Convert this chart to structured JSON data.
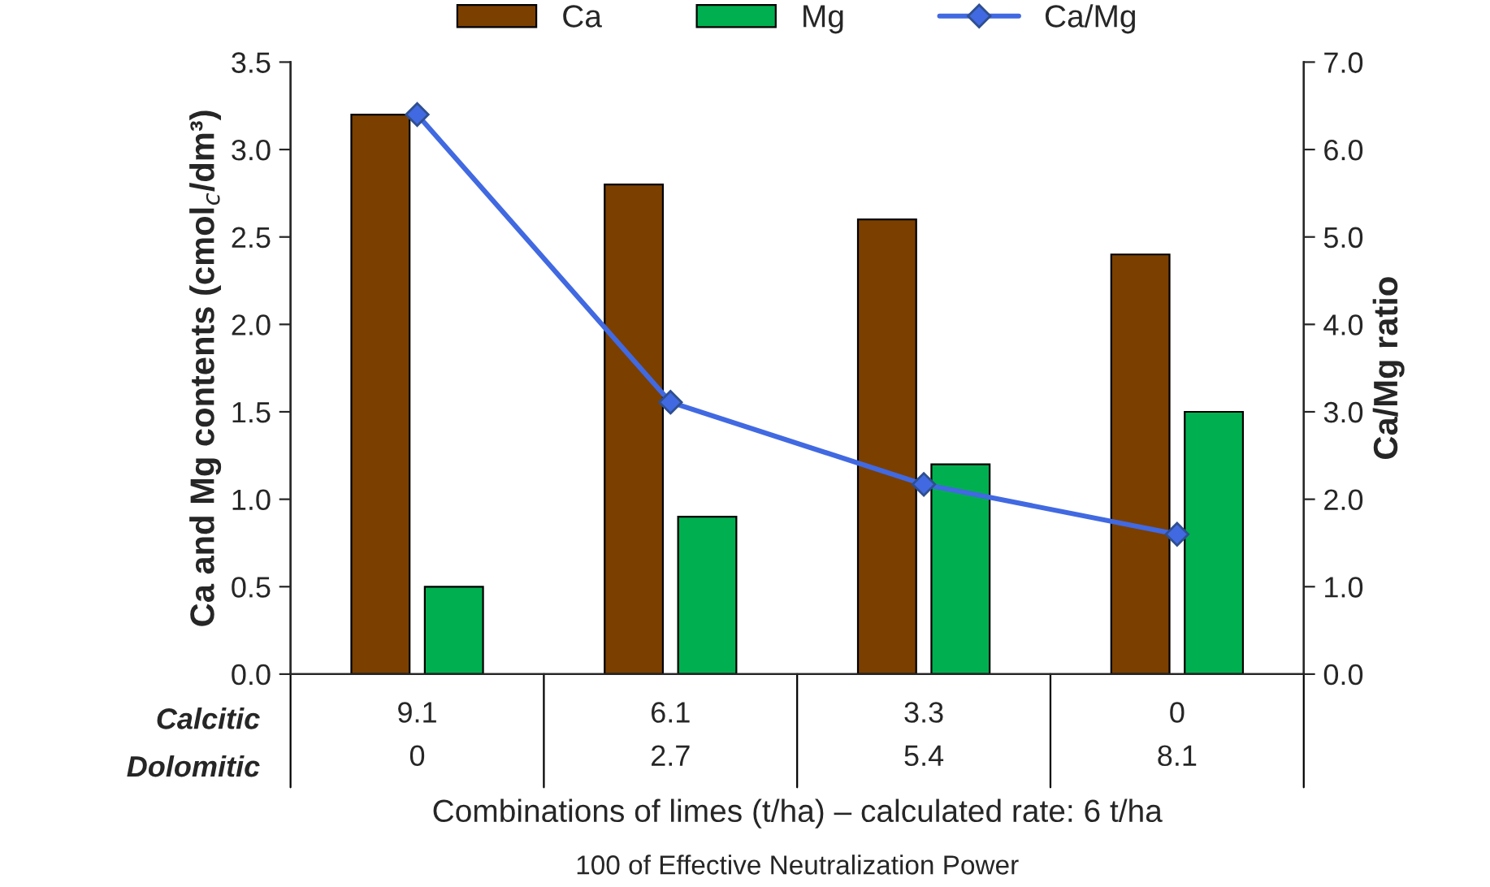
{
  "chart_data": {
    "type": "bar",
    "categories": [
      "9.1\n0",
      "6.1\n2.7",
      "3.3\n5.4",
      "0\n8.1"
    ],
    "series": [
      {
        "name": "Ca",
        "color": "#7b3f00",
        "values": [
          3.2,
          2.8,
          2.6,
          2.4
        ]
      },
      {
        "name": "Mg",
        "color": "#00b050",
        "values": [
          0.5,
          0.9,
          1.2,
          1.5
        ]
      },
      {
        "name": "Ca/Mg",
        "type": "line",
        "axis": "y2",
        "color": "#4169e1",
        "marker": "diamond",
        "values": [
          6.4,
          3.11,
          2.17,
          1.6
        ]
      }
    ],
    "ylabel": "Ca and Mg contents (cmol$_{c}$/dm³)",
    "y2label": "Ca/Mg ratio",
    "xlabel": "Combinations of limes (t/ha) – calculated rate: 6 t/ha",
    "annotations": [
      "Calcitic",
      "Dolomitic",
      "100 of Effective Neutralization Power"
    ],
    "ylim": [
      0,
      3.5
    ],
    "yticks": [
      {
        "value": 0,
        "label": "0.0"
      },
      {
        "value": 0.5,
        "label": "0.5"
      },
      {
        "value": 1,
        "label": "1.0"
      },
      {
        "value": 1.5,
        "label": "1.5"
      },
      {
        "value": 2,
        "label": "2.0"
      },
      {
        "value": 2.5,
        "label": "2.5"
      },
      {
        "value": 3,
        "label": "3.0"
      },
      {
        "value": 3.5,
        "label": "3.5"
      }
    ],
    "y2lim": [
      0,
      7
    ],
    "y2ticks": [
      {
        "value": 0,
        "label": "0.0"
      },
      {
        "value": 1,
        "label": "1.0"
      },
      {
        "value": 2,
        "label": "2.0"
      },
      {
        "value": 3,
        "label": "3.0"
      },
      {
        "value": 4,
        "label": "4.0"
      },
      {
        "value": 5,
        "label": "5.0"
      },
      {
        "value": 6,
        "label": "6.0"
      },
      {
        "value": 7,
        "label": "7.0"
      }
    ],
    "legend": "top",
    "grid": false
  }
}
